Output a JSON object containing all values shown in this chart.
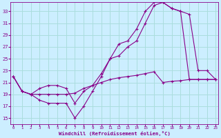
{
  "xlabel": "Windchill (Refroidissement éolien,°C)",
  "background_color": "#cceeff",
  "grid_color": "#aadddd",
  "line_color": "#880088",
  "x_ticks": [
    0,
    1,
    2,
    3,
    4,
    5,
    6,
    7,
    8,
    9,
    10,
    11,
    12,
    13,
    14,
    15,
    16,
    17,
    18,
    19,
    20,
    21,
    22,
    23
  ],
  "y_ticks": [
    15,
    17,
    19,
    21,
    23,
    25,
    27,
    29,
    31,
    33
  ],
  "xlim": [
    -0.3,
    23.3
  ],
  "ylim": [
    14.0,
    34.5
  ],
  "line1_x": [
    0,
    1,
    2,
    3,
    4,
    5,
    6,
    7,
    8,
    9,
    10,
    11,
    12,
    13,
    14,
    15,
    16,
    17,
    18,
    19,
    20,
    21,
    22,
    23
  ],
  "line1_y": [
    22,
    19.5,
    19,
    19,
    19,
    19,
    19,
    19.2,
    20,
    20.5,
    21,
    21.5,
    21.8,
    22,
    22.2,
    22.5,
    22.8,
    21,
    21.2,
    21.3,
    21.5,
    21.5,
    21.5,
    21.5
  ],
  "line2_x": [
    0,
    1,
    2,
    3,
    4,
    5,
    6,
    7,
    8,
    9,
    10,
    11,
    12,
    13,
    14,
    15,
    16,
    17,
    18,
    19,
    20,
    21,
    22,
    23
  ],
  "line2_y": [
    22,
    19.5,
    19,
    18,
    17.5,
    17.5,
    17.5,
    15,
    17,
    19.5,
    22,
    25,
    25.5,
    27,
    28,
    31,
    34,
    34.5,
    33.5,
    33,
    21.5,
    21.5,
    21.5,
    21.5
  ],
  "line3_x": [
    0,
    1,
    2,
    3,
    4,
    5,
    6,
    7,
    8,
    9,
    10,
    11,
    12,
    13,
    14,
    15,
    16,
    17,
    18,
    19,
    20,
    21,
    22,
    23
  ],
  "line3_y": [
    22,
    19.5,
    19,
    20,
    20.5,
    20.5,
    20,
    17.5,
    19.5,
    20.5,
    22.5,
    25,
    27.5,
    28,
    30,
    33,
    34.5,
    34.5,
    33.5,
    33,
    32.5,
    23,
    23,
    21.5
  ]
}
